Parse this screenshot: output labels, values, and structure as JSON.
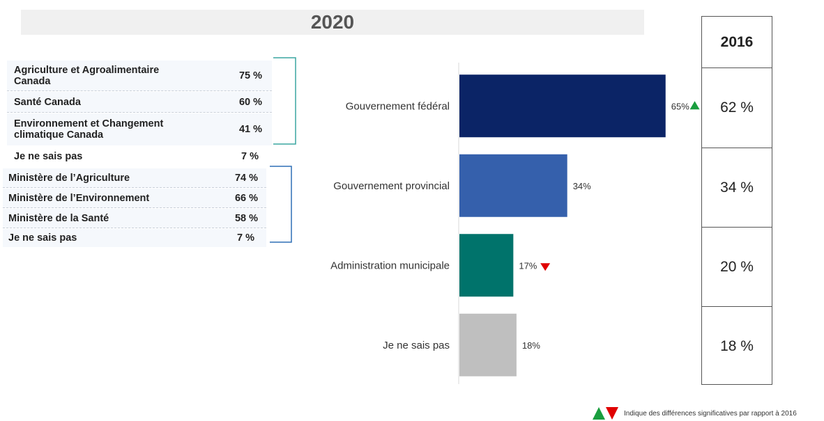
{
  "title": "2020",
  "federal_breakdown": [
    {
      "label": "Agriculture et Agroalimentaire Canada",
      "value": "75 %"
    },
    {
      "label": "Santé Canada",
      "value": "60 %"
    },
    {
      "label": "Environnement et Changement climatique Canada",
      "value": "41 %"
    },
    {
      "label": "Je ne sais pas",
      "value": "7 %"
    }
  ],
  "provincial_breakdown": [
    {
      "label": "Ministère de l’Agriculture",
      "value": "74 %"
    },
    {
      "label": "Ministère de l’Environnement",
      "value": "66 %"
    },
    {
      "label": "Ministère de la Santé",
      "value": "58 %"
    },
    {
      "label": "Je ne sais pas",
      "value": "7 %"
    }
  ],
  "chart_data": {
    "type": "bar",
    "orientation": "horizontal",
    "title": "2020",
    "categories": [
      "Gouvernement fédéral",
      "Gouvernement provincial",
      "Administration municipale",
      "Je ne sais pas"
    ],
    "values": [
      65,
      34,
      17,
      18
    ],
    "value_labels": [
      "65%",
      "34%",
      "17%",
      "18%"
    ],
    "colors": [
      "#0b2466",
      "#3560ac",
      "#00736b",
      "#bfbfbf"
    ],
    "significance": [
      "up",
      "none",
      "down",
      "none"
    ],
    "xlim": [
      0,
      100
    ],
    "grid": false,
    "comparison_header": "2016",
    "comparison_values": [
      "62 %",
      "34 %",
      "20 %",
      "18 %"
    ]
  },
  "legend": {
    "text": "Indique des différences significatives par rapport à 2016",
    "up_color": "#1a9e3f",
    "down_color": "#e00000"
  }
}
